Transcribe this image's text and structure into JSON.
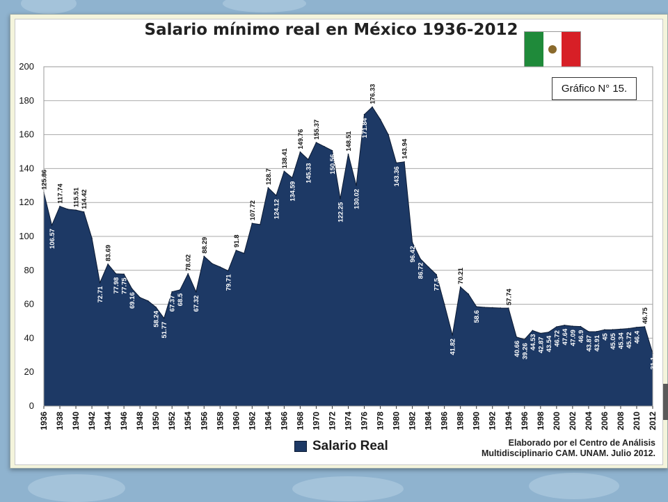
{
  "title": "Salario mínimo real en México 1936-2012",
  "badge": "Gráfico N° 15.",
  "credit_line1": "Elaborado por el Centro de Análisis",
  "credit_line2": "Multidisciplinario CAM. UNAM. Julio 2012.",
  "colors": {
    "area": "#1d3965",
    "area_edge": "#0b1a33",
    "grid": "#a9a9a9",
    "label": "#111111"
  },
  "chart_data": {
    "type": "area",
    "title": "Salario mínimo real en México 1936-2012",
    "xlim": [
      1936,
      2012
    ],
    "ylim": [
      0,
      200
    ],
    "yticks": [
      0,
      20,
      40,
      60,
      80,
      100,
      120,
      140,
      160,
      180,
      200
    ],
    "xticks": [
      1936,
      1938,
      1940,
      1942,
      1944,
      1946,
      1948,
      1950,
      1952,
      1954,
      1956,
      1958,
      1960,
      1962,
      1964,
      1966,
      1968,
      1970,
      1972,
      1974,
      1976,
      1978,
      1980,
      1982,
      1984,
      1986,
      1988,
      1990,
      1992,
      1994,
      1996,
      1998,
      2000,
      2002,
      2004,
      2006,
      2008,
      2010,
      2012
    ],
    "grid": true,
    "legend": "bottom",
    "series": [
      {
        "name": "Salario Real",
        "points": [
          [
            1936,
            125.86
          ],
          [
            1937,
            106.57
          ],
          [
            1938,
            117.74
          ],
          [
            1939,
            116
          ],
          [
            1940,
            115.51
          ],
          [
            1941,
            114.42
          ],
          [
            1942,
            99
          ],
          [
            1943,
            72.71
          ],
          [
            1944,
            83.69
          ],
          [
            1945,
            77.98
          ],
          [
            1946,
            77.75
          ],
          [
            1947,
            69.16
          ],
          [
            1948,
            64
          ],
          [
            1949,
            62
          ],
          [
            1950,
            58.24
          ],
          [
            1951,
            51.77
          ],
          [
            1952,
            67.37
          ],
          [
            1953,
            68.5
          ],
          [
            1954,
            78.02
          ],
          [
            1955,
            67.32
          ],
          [
            1956,
            88.29
          ],
          [
            1957,
            84
          ],
          [
            1958,
            82
          ],
          [
            1959,
            79.71
          ],
          [
            1960,
            91.8
          ],
          [
            1961,
            90
          ],
          [
            1962,
            107.72
          ],
          [
            1963,
            107
          ],
          [
            1964,
            128.7
          ],
          [
            1965,
            124.12
          ],
          [
            1966,
            138.41
          ],
          [
            1967,
            134.59
          ],
          [
            1968,
            149.76
          ],
          [
            1969,
            145.33
          ],
          [
            1970,
            155.37
          ],
          [
            1971,
            153
          ],
          [
            1972,
            150.56
          ],
          [
            1973,
            122.25
          ],
          [
            1974,
            148.51
          ],
          [
            1975,
            130.02
          ],
          [
            1976,
            171.84
          ],
          [
            1977,
            176.33
          ],
          [
            1978,
            169
          ],
          [
            1979,
            160
          ],
          [
            1980,
            143.36
          ],
          [
            1981,
            143.94
          ],
          [
            1982,
            96.42
          ],
          [
            1983,
            86.72
          ],
          [
            1984,
            82
          ],
          [
            1985,
            77.5
          ],
          [
            1986,
            60
          ],
          [
            1987,
            41.82
          ],
          [
            1988,
            70.21
          ],
          [
            1989,
            66
          ],
          [
            1990,
            58.6
          ],
          [
            1991,
            58.2
          ],
          [
            1992,
            58
          ],
          [
            1993,
            57.8
          ],
          [
            1994,
            57.74
          ],
          [
            1995,
            40.66
          ],
          [
            1996,
            39.26
          ],
          [
            1997,
            44.53
          ],
          [
            1998,
            42.87
          ],
          [
            1999,
            43.54
          ],
          [
            2000,
            46.72
          ],
          [
            2001,
            47.64
          ],
          [
            2002,
            47.09
          ],
          [
            2003,
            46.9
          ],
          [
            2004,
            43.87
          ],
          [
            2005,
            43.91
          ],
          [
            2006,
            45
          ],
          [
            2007,
            45.05
          ],
          [
            2008,
            45.34
          ],
          [
            2009,
            45.72
          ],
          [
            2010,
            46.4
          ],
          [
            2011,
            46.75
          ],
          [
            2012,
            31.1
          ]
        ]
      }
    ],
    "data_labels": [
      {
        "x": 1936,
        "text": "125.86",
        "pos": "above"
      },
      {
        "x": 1937,
        "text": "106.57",
        "pos": "below"
      },
      {
        "x": 1938,
        "text": "117.74",
        "pos": "above"
      },
      {
        "x": 1940,
        "text": "115.51",
        "pos": "above"
      },
      {
        "x": 1941,
        "text": "114.42",
        "pos": "above"
      },
      {
        "x": 1943,
        "text": "72.71",
        "pos": "below"
      },
      {
        "x": 1944,
        "text": "83.69",
        "pos": "above"
      },
      {
        "x": 1945,
        "text": "77.98",
        "pos": "below"
      },
      {
        "x": 1946,
        "text": "77.75",
        "pos": "below"
      },
      {
        "x": 1947,
        "text": "69.16",
        "pos": "below"
      },
      {
        "x": 1950,
        "text": "58.24",
        "pos": "below"
      },
      {
        "x": 1951,
        "text": "51.77",
        "pos": "below"
      },
      {
        "x": 1952,
        "text": "67.37",
        "pos": "below"
      },
      {
        "x": 1953,
        "text": "68.5",
        "pos": "below"
      },
      {
        "x": 1954,
        "text": "78.02",
        "pos": "above"
      },
      {
        "x": 1955,
        "text": "67.32",
        "pos": "below"
      },
      {
        "x": 1956,
        "text": "88.29",
        "pos": "above"
      },
      {
        "x": 1959,
        "text": "79.71",
        "pos": "below"
      },
      {
        "x": 1960,
        "text": "91.8",
        "pos": "above"
      },
      {
        "x": 1962,
        "text": "107.72",
        "pos": "above"
      },
      {
        "x": 1964,
        "text": "128.7",
        "pos": "above"
      },
      {
        "x": 1965,
        "text": "124.12",
        "pos": "below"
      },
      {
        "x": 1966,
        "text": "138.41",
        "pos": "above"
      },
      {
        "x": 1967,
        "text": "134.59",
        "pos": "below"
      },
      {
        "x": 1968,
        "text": "149.76",
        "pos": "above"
      },
      {
        "x": 1969,
        "text": "145.33",
        "pos": "below"
      },
      {
        "x": 1970,
        "text": "155.37",
        "pos": "above"
      },
      {
        "x": 1972,
        "text": "150.56",
        "pos": "below"
      },
      {
        "x": 1973,
        "text": "122.25",
        "pos": "below"
      },
      {
        "x": 1974,
        "text": "148.51",
        "pos": "above"
      },
      {
        "x": 1975,
        "text": "130.02",
        "pos": "below"
      },
      {
        "x": 1976,
        "text": "171.84",
        "pos": "below"
      },
      {
        "x": 1977,
        "text": "176.33",
        "pos": "above"
      },
      {
        "x": 1980,
        "text": "143.36",
        "pos": "below"
      },
      {
        "x": 1981,
        "text": "143.94",
        "pos": "above"
      },
      {
        "x": 1982,
        "text": "96.42",
        "pos": "below"
      },
      {
        "x": 1983,
        "text": "86.72",
        "pos": "below"
      },
      {
        "x": 1985,
        "text": "77.5",
        "pos": "below"
      },
      {
        "x": 1987,
        "text": "41.82",
        "pos": "below"
      },
      {
        "x": 1988,
        "text": "70.21",
        "pos": "above"
      },
      {
        "x": 1990,
        "text": "58.6",
        "pos": "below"
      },
      {
        "x": 1994,
        "text": "57.74",
        "pos": "above"
      },
      {
        "x": 1995,
        "text": "40.66",
        "pos": "below"
      },
      {
        "x": 1996,
        "text": "39.26",
        "pos": "below"
      },
      {
        "x": 1997,
        "text": "44.53",
        "pos": "below"
      },
      {
        "x": 1998,
        "text": "42.87",
        "pos": "below"
      },
      {
        "x": 1999,
        "text": "43.54",
        "pos": "below"
      },
      {
        "x": 2000,
        "text": "46.72",
        "pos": "below"
      },
      {
        "x": 2001,
        "text": "47.64",
        "pos": "below"
      },
      {
        "x": 2002,
        "text": "47.09",
        "pos": "below"
      },
      {
        "x": 2003,
        "text": "46.9",
        "pos": "below"
      },
      {
        "x": 2004,
        "text": "43.87",
        "pos": "below"
      },
      {
        "x": 2005,
        "text": "43.91",
        "pos": "below"
      },
      {
        "x": 2006,
        "text": "45",
        "pos": "below"
      },
      {
        "x": 2007,
        "text": "45.05",
        "pos": "below"
      },
      {
        "x": 2008,
        "text": "45.34",
        "pos": "below"
      },
      {
        "x": 2009,
        "text": "45.72",
        "pos": "below"
      },
      {
        "x": 2010,
        "text": "46.4",
        "pos": "below"
      },
      {
        "x": 2011,
        "text": "46.75",
        "pos": "above"
      },
      {
        "x": 2012,
        "text": "31.1",
        "pos": "below"
      }
    ]
  }
}
